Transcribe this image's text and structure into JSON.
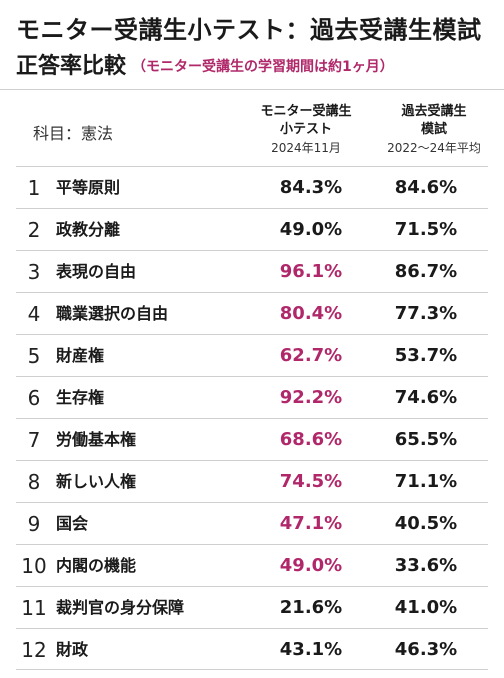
{
  "title": {
    "line1": "モニター受講生小テスト：過去受講生模試",
    "line2": "正答率比較",
    "note": "（モニター受講生の学習期間は約1ヶ月）"
  },
  "subject": "科目：憲法",
  "columns": {
    "monitor": {
      "label1": "モニター受講生",
      "label2": "小テスト",
      "period": "2024年11月"
    },
    "past": {
      "label1": "過去受講生",
      "label2": "模試",
      "period": "2022〜24年平均"
    }
  },
  "highlight_color": "#b0286a",
  "rows": [
    {
      "no": "1",
      "name": "平等原則",
      "monitor": "84.3%",
      "past": "84.6%",
      "highlight": false
    },
    {
      "no": "2",
      "name": "政教分離",
      "monitor": "49.0%",
      "past": "71.5%",
      "highlight": false
    },
    {
      "no": "3",
      "name": "表現の自由",
      "monitor": "96.1%",
      "past": "86.7%",
      "highlight": true
    },
    {
      "no": "4",
      "name": "職業選択の自由",
      "monitor": "80.4%",
      "past": "77.3%",
      "highlight": true
    },
    {
      "no": "5",
      "name": "財産権",
      "monitor": "62.7%",
      "past": "53.7%",
      "highlight": true
    },
    {
      "no": "6",
      "name": "生存権",
      "monitor": "92.2%",
      "past": "74.6%",
      "highlight": true
    },
    {
      "no": "7",
      "name": "労働基本権",
      "monitor": "68.6%",
      "past": "65.5%",
      "highlight": true
    },
    {
      "no": "8",
      "name": "新しい人権",
      "monitor": "74.5%",
      "past": "71.1%",
      "highlight": true
    },
    {
      "no": "9",
      "name": "国会",
      "monitor": "47.1%",
      "past": "40.5%",
      "highlight": true
    },
    {
      "no": "10",
      "name": "内閣の機能",
      "monitor": "49.0%",
      "past": "33.6%",
      "highlight": true
    },
    {
      "no": "11",
      "name": "裁判官の身分保障",
      "monitor": "21.6%",
      "past": "41.0%",
      "highlight": false
    },
    {
      "no": "12",
      "name": "財政",
      "monitor": "43.1%",
      "past": "46.3%",
      "highlight": false
    }
  ]
}
